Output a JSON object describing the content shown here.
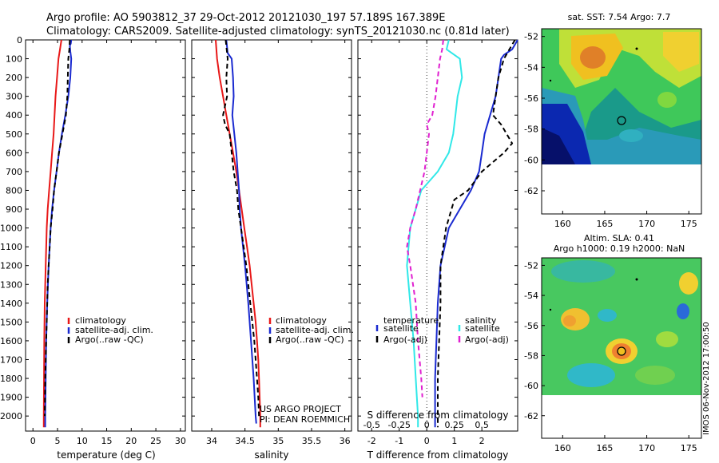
{
  "header": {
    "line1": "Argo profile: AO 5903812_37 29-Oct-2012 20121030_197 57.189S 167.389E",
    "line2": "Climatology: CARS2009. Satellite-adjusted climatology: synTS_20121030.nc (0.81d later)"
  },
  "credits": {
    "project": "US ARGO PROJECT",
    "pi": "PI: DEAN ROEMMICH",
    "stamp": "IMOS 06-Nov-2012 17:00:50"
  },
  "colors": {
    "climatology": "#e81818",
    "satellite": "#1a2ad0",
    "argo": "#000000",
    "cyan": "#30e8e8",
    "magenta": "#e020d0"
  },
  "chart_data": [
    {
      "type": "line",
      "panel": "temperature",
      "xlabel": "temperature (deg C)",
      "xlim": [
        -1.5,
        31
      ],
      "xticks": [
        "0",
        "5",
        "10",
        "15",
        "20",
        "25",
        "30"
      ],
      "ylim": [
        0,
        2080
      ],
      "yticks": [
        "0",
        "100",
        "200",
        "300",
        "400",
        "500",
        "600",
        "700",
        "800",
        "900",
        "1000",
        "1100",
        "1200",
        "1300",
        "1400",
        "1500",
        "1600",
        "1700",
        "1800",
        "1900",
        "2000"
      ],
      "legend": [
        "climatology",
        "satellite-adj. clim.",
        "Argo(..raw -QC)"
      ],
      "series": [
        {
          "name": "climatology",
          "color": "climatology",
          "dash": "",
          "depth": [
            0,
            50,
            100,
            200,
            300,
            400,
            500,
            600,
            700,
            800,
            900,
            1000,
            1200,
            1400,
            1600,
            1800,
            2000,
            2060
          ],
          "values": [
            5.8,
            5.5,
            5.2,
            4.9,
            4.6,
            4.4,
            4.2,
            3.9,
            3.6,
            3.3,
            3.0,
            2.8,
            2.6,
            2.4,
            2.3,
            2.25,
            2.2,
            2.2
          ]
        },
        {
          "name": "satellite-adj. clim.",
          "color": "satellite",
          "dash": "",
          "depth": [
            0,
            20,
            30,
            60,
            100,
            200,
            300,
            400,
            500,
            600,
            700,
            800,
            900,
            1000,
            1200,
            1400,
            1600,
            1800,
            2000,
            2060
          ],
          "values": [
            7.8,
            7.7,
            7.5,
            7.6,
            7.8,
            7.6,
            7.2,
            6.6,
            5.9,
            5.3,
            4.8,
            4.3,
            3.9,
            3.6,
            3.2,
            2.9,
            2.7,
            2.6,
            2.5,
            2.5
          ]
        },
        {
          "name": "Argo(..raw -QC)",
          "color": "argo",
          "dash": "6,4",
          "depth": [
            0,
            50,
            100,
            200,
            300,
            400,
            500,
            600,
            700,
            800,
            900,
            1000,
            1100,
            1200,
            1300,
            1400,
            1500,
            1600,
            1700,
            1800,
            1900,
            2000
          ],
          "values": [
            7.5,
            7.4,
            7.2,
            7.1,
            7.0,
            6.7,
            6.0,
            5.3,
            4.8,
            4.3,
            4.0,
            3.6,
            3.4,
            3.2,
            3.0,
            2.9,
            2.8,
            2.7,
            2.6,
            2.5,
            2.45,
            2.4
          ]
        }
      ]
    },
    {
      "type": "line",
      "panel": "salinity",
      "xlabel": "salinity",
      "xlim": [
        33.7,
        36.1
      ],
      "xticks": [
        "34",
        "34.5",
        "35",
        "35.5",
        "36"
      ],
      "ylim": [
        0,
        2080
      ],
      "legend": [
        "climatology",
        "satellite-adj. clim.",
        "Argo(..raw -QC)"
      ],
      "series": [
        {
          "name": "climatology",
          "color": "climatology",
          "dash": "",
          "depth": [
            0,
            100,
            200,
            300,
            400,
            500,
            600,
            700,
            800,
            900,
            1000,
            1100,
            1200,
            1300,
            1400,
            1500,
            1600,
            1700,
            1800,
            1900,
            2000,
            2060
          ],
          "values": [
            34.06,
            34.08,
            34.12,
            34.17,
            34.22,
            34.27,
            34.32,
            34.37,
            34.41,
            34.45,
            34.49,
            34.53,
            34.57,
            34.6,
            34.63,
            34.66,
            34.68,
            34.7,
            34.71,
            34.72,
            34.73,
            34.73
          ]
        },
        {
          "name": "satellite-adj. clim.",
          "color": "satellite",
          "dash": "",
          "depth": [
            0,
            70,
            100,
            200,
            300,
            400,
            500,
            600,
            700,
            800,
            900,
            1000,
            1200,
            1400,
            1600,
            1800,
            2000,
            2040
          ],
          "values": [
            34.22,
            34.24,
            34.3,
            34.32,
            34.33,
            34.31,
            34.34,
            34.37,
            34.39,
            34.41,
            34.42,
            34.44,
            34.5,
            34.55,
            34.59,
            34.63,
            34.66,
            34.67
          ]
        },
        {
          "name": "Argo(..raw -QC)",
          "color": "argo",
          "dash": "6,4",
          "depth": [
            0,
            100,
            200,
            300,
            400,
            450,
            500,
            600,
            700,
            800,
            900,
            1000,
            1100,
            1200,
            1300,
            1400,
            1500,
            1600,
            1700,
            1800,
            1900,
            2000
          ],
          "values": [
            34.21,
            34.24,
            34.22,
            34.23,
            34.17,
            34.2,
            34.27,
            34.3,
            34.33,
            34.38,
            34.4,
            34.44,
            34.48,
            34.52,
            34.55,
            34.58,
            34.61,
            34.64,
            34.66,
            34.68,
            34.7,
            34.71
          ]
        }
      ]
    },
    {
      "type": "line",
      "panel": "differences",
      "xlabel": "T difference from climatology",
      "xlabel2": "S difference from climatology",
      "xlim": [
        -2.5,
        3.3
      ],
      "xticks": [
        "-2",
        "-1",
        "0",
        "1",
        "2"
      ],
      "xticks2": [
        "-0.5",
        "-0.25",
        "0",
        "0.25",
        "0.5"
      ],
      "ylim": [
        0,
        2080
      ],
      "legend_left_title": "temperature",
      "legend_right_title": "salinity",
      "legend_left": [
        "satellite",
        "Argo(-adj)"
      ],
      "legend_right": [
        "satellite",
        "Argo(-adj)"
      ],
      "series": [
        {
          "name": "temperature satellite",
          "color": "satellite",
          "dash": "",
          "depth": [
            0,
            50,
            80,
            100,
            150,
            200,
            300,
            400,
            500,
            600,
            700,
            800,
            900,
            1000,
            1200,
            1400,
            1600,
            1800,
            2000,
            2060
          ],
          "values": [
            3.3,
            3.1,
            2.8,
            2.7,
            2.65,
            2.6,
            2.5,
            2.3,
            2.1,
            2.0,
            1.9,
            1.6,
            1.2,
            0.8,
            0.5,
            0.4,
            0.35,
            0.3,
            0.3,
            0.3
          ]
        },
        {
          "name": "temperature Argo(-adj)",
          "color": "argo",
          "dash": "6,4",
          "depth": [
            0,
            50,
            100,
            200,
            300,
            400,
            450,
            500,
            550,
            600,
            700,
            800,
            850,
            900,
            1000,
            1100,
            1200,
            1400,
            1600,
            1800,
            2000,
            2060
          ],
          "values": [
            3.2,
            3.0,
            2.8,
            2.6,
            2.5,
            2.4,
            2.7,
            2.9,
            3.1,
            2.8,
            2.0,
            1.5,
            1.0,
            0.9,
            0.7,
            0.6,
            0.5,
            0.5,
            0.45,
            0.4,
            0.4,
            0.4
          ]
        },
        {
          "name": "salinity satellite",
          "color": "cyan",
          "dash": "",
          "depth": [
            0,
            50,
            100,
            200,
            300,
            400,
            500,
            600,
            700,
            800,
            900,
            1000,
            1200,
            1400,
            1600,
            1800,
            2000,
            2060
          ],
          "values": [
            0.2,
            0.18,
            0.3,
            0.32,
            0.28,
            0.26,
            0.24,
            0.2,
            0.1,
            -0.05,
            -0.1,
            -0.15,
            -0.18,
            -0.15,
            -0.12,
            -0.1,
            -0.08,
            -0.08
          ]
        },
        {
          "name": "salinity Argo(-adj)",
          "color": "magenta",
          "dash": "6,4",
          "depth": [
            0,
            50,
            100,
            200,
            300,
            400,
            450,
            500,
            600,
            700,
            800,
            900,
            1000,
            1100,
            1200,
            1400,
            1600,
            1800,
            1900
          ],
          "values": [
            0.15,
            0.14,
            0.12,
            0.1,
            0.08,
            0.05,
            0.0,
            0.02,
            0.0,
            -0.02,
            -0.06,
            -0.1,
            -0.15,
            -0.18,
            -0.15,
            -0.1,
            -0.08,
            -0.05,
            -0.04
          ]
        }
      ]
    }
  ],
  "maps": {
    "xticks": [
      "160",
      "165",
      "170",
      "175"
    ],
    "yticks": [
      "-52",
      "-54",
      "-56",
      "-58",
      "-60",
      "-62"
    ],
    "top": {
      "title": "sat. SST: 7.54 Argo: 7.7"
    },
    "bottom": {
      "title1": "Altim. SLA: 0.41",
      "title2": "Argo h1000: 0.19 h2000: NaN"
    }
  }
}
